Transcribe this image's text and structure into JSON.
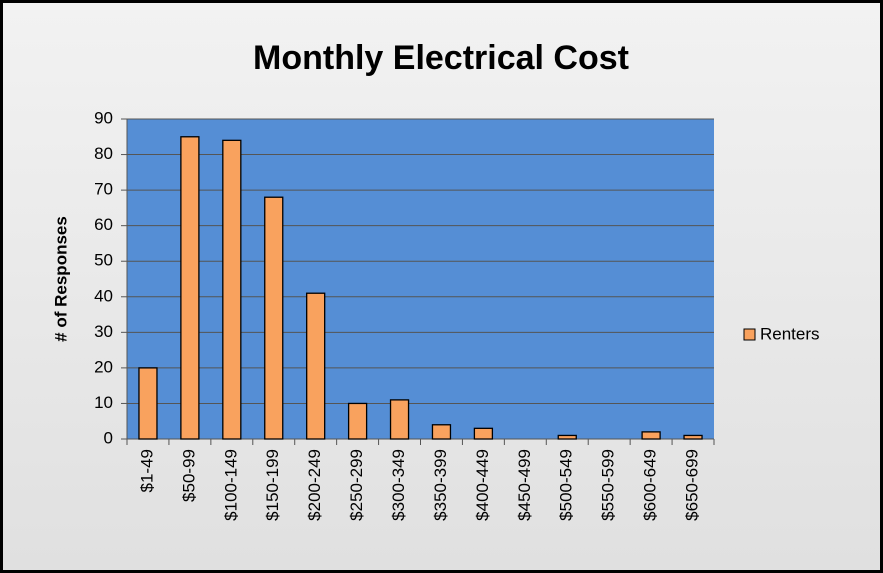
{
  "chart_data": {
    "type": "bar",
    "title": "Monthly Electrical Cost",
    "y_label": "# of Responses",
    "categories": [
      "$1-49",
      "$50-99",
      "$100-149",
      "$150-199",
      "$200-249",
      "$250-299",
      "$300-349",
      "$350-399",
      "$400-449",
      "$450-499",
      "$500-549",
      "$550-599",
      "$600-649",
      "$650-699"
    ],
    "series": [
      {
        "name": "Renters",
        "color": "#F9A25E",
        "values": [
          20,
          85,
          84,
          68,
          41,
          10,
          11,
          4,
          3,
          0,
          1,
          0,
          2,
          1
        ]
      }
    ],
    "ylim": [
      0,
      90
    ],
    "yticks": [
      0,
      10,
      20,
      30,
      40,
      50,
      60,
      70,
      80,
      90
    ],
    "grid": true,
    "legend": "right",
    "plot_color": "#558ED5"
  }
}
